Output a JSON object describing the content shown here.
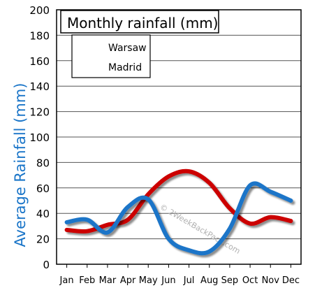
{
  "chart_data": {
    "type": "line",
    "title": "Monthly rainfall (mm)",
    "ylabel": "Average Rainfall (mm)",
    "xlabel": "",
    "categories": [
      "Jan",
      "Feb",
      "Mar",
      "Apr",
      "May",
      "Jun",
      "Jul",
      "Aug",
      "Sep",
      "Oct",
      "Nov",
      "Dec"
    ],
    "ylim": [
      0,
      200
    ],
    "yticks": [
      0,
      20,
      40,
      60,
      80,
      100,
      120,
      140,
      160,
      180,
      200
    ],
    "grid": true,
    "legend_position": "top-left",
    "series": [
      {
        "name": "Warsaw",
        "color": "#cc0000",
        "values": [
          27,
          26,
          31,
          35,
          55,
          69,
          73,
          64,
          44,
          32,
          37,
          34
        ]
      },
      {
        "name": "Madrid",
        "color": "#1a75c8",
        "values": [
          33,
          35,
          25,
          45,
          51,
          20,
          11,
          10,
          28,
          62,
          57,
          50
        ]
      }
    ],
    "watermark": "© 2WeekBackPack.com"
  }
}
